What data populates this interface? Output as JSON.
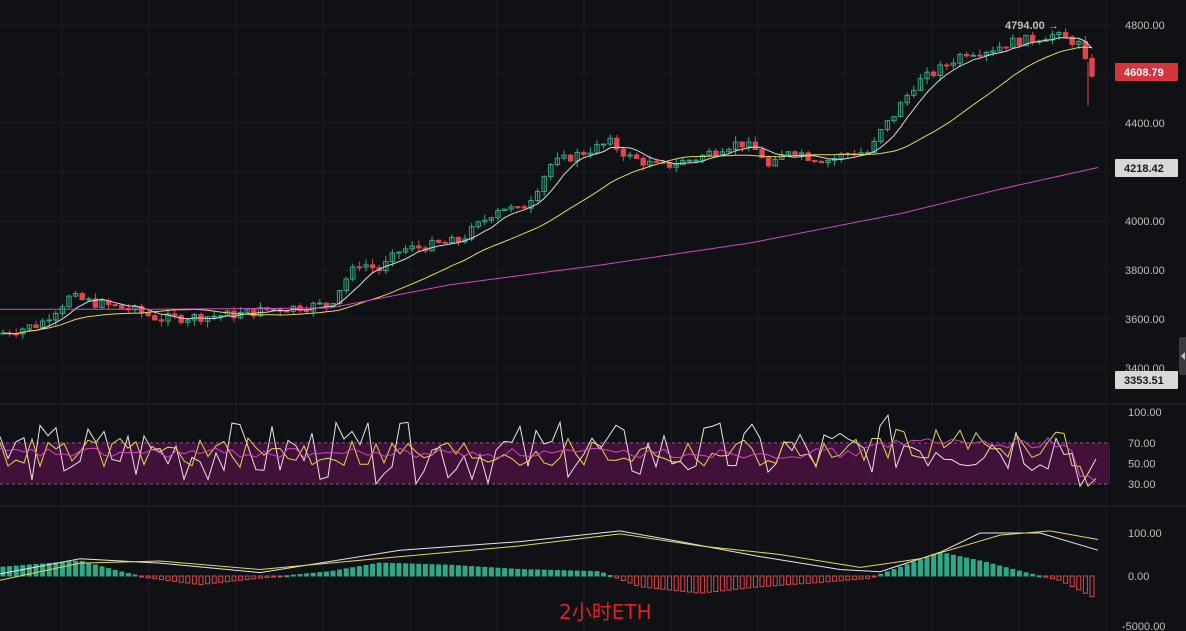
{
  "caption": "2小时ETH",
  "colors": {
    "background": "#101114",
    "grid": "#1c1d22",
    "up": "#2ea987",
    "down": "#e0454c",
    "ma_fast": "#d9d9d9",
    "ma_mid": "#e6d84a",
    "ma_slow": "#d147c3",
    "rsi_band": "#4a1240",
    "macd_dif": "#e6e6e6",
    "macd_dea": "#e6d84a"
  },
  "price_axis": {
    "ticks": [
      "4800.00",
      "4400.00",
      "4000.00",
      "3800.00",
      "3600.00",
      "3400.00"
    ],
    "tick_values": [
      4800,
      4400,
      4000,
      3800,
      3600,
      3400
    ],
    "high_marker": "4794.00 →",
    "current_price": "4608.79",
    "ma_slow_value": "4218.42",
    "low_marker": "3353.51"
  },
  "rsi_axis": {
    "ticks": [
      "100.00",
      "70.00",
      "50.00",
      "30.00"
    ],
    "tick_values": [
      100,
      70,
      50,
      30
    ]
  },
  "macd_axis": {
    "ticks": [
      "100.00",
      "0.00",
      "-5000.00"
    ],
    "tick_values": [
      100,
      0,
      -5000
    ]
  },
  "chart_data": {
    "type": "line",
    "title": "",
    "panels": [
      "price_candlestick",
      "rsi",
      "macd"
    ],
    "price_ylim": [
      3353.51,
      4800
    ],
    "price_series": [
      {
        "name": "candles_close_sampled",
        "values": [
          3540,
          3560,
          3650,
          3680,
          3660,
          3630,
          3600,
          3610,
          3620,
          3640,
          3660,
          3650,
          3680,
          3760,
          3820,
          3860,
          3900,
          3940,
          3980,
          4060,
          4120,
          4200,
          4260,
          4300,
          4240,
          4210,
          4230,
          4260,
          4300,
          4280,
          4230,
          4240,
          4260,
          4280,
          4400,
          4520,
          4620,
          4680,
          4720,
          4760,
          4780,
          4760,
          4608.79
        ]
      }
    ],
    "rsi_ylim": [
      20,
      105
    ],
    "macd_ylim": [
      -60,
      140
    ]
  }
}
